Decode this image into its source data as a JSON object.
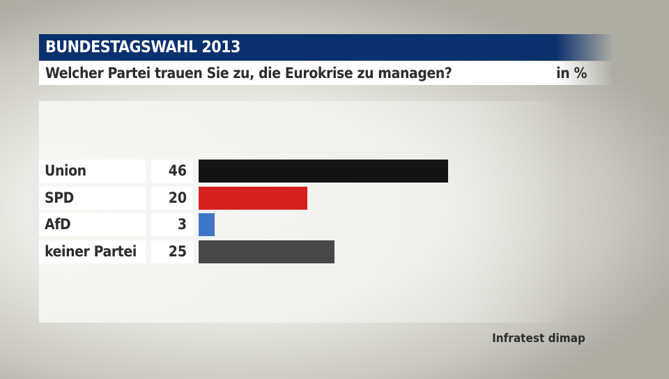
{
  "header": {
    "title": "BUNDESTAGSWAHL 2013",
    "question": "Welcher Partei trauen Sie zu, die Eurokrise zu managen?",
    "unit": "in %"
  },
  "chart_data": {
    "type": "bar",
    "orientation": "horizontal",
    "title": "Welcher Partei trauen Sie zu, die Eurokrise zu managen?",
    "unit": "in %",
    "categories": [
      "Union",
      "SPD",
      "AfD",
      "keiner Partei"
    ],
    "values": [
      46,
      20,
      3,
      25
    ],
    "colors": [
      "#141414",
      "#d81f1f",
      "#3e77c6",
      "#474747"
    ],
    "grid": false
  },
  "source": "Infratest dimap"
}
